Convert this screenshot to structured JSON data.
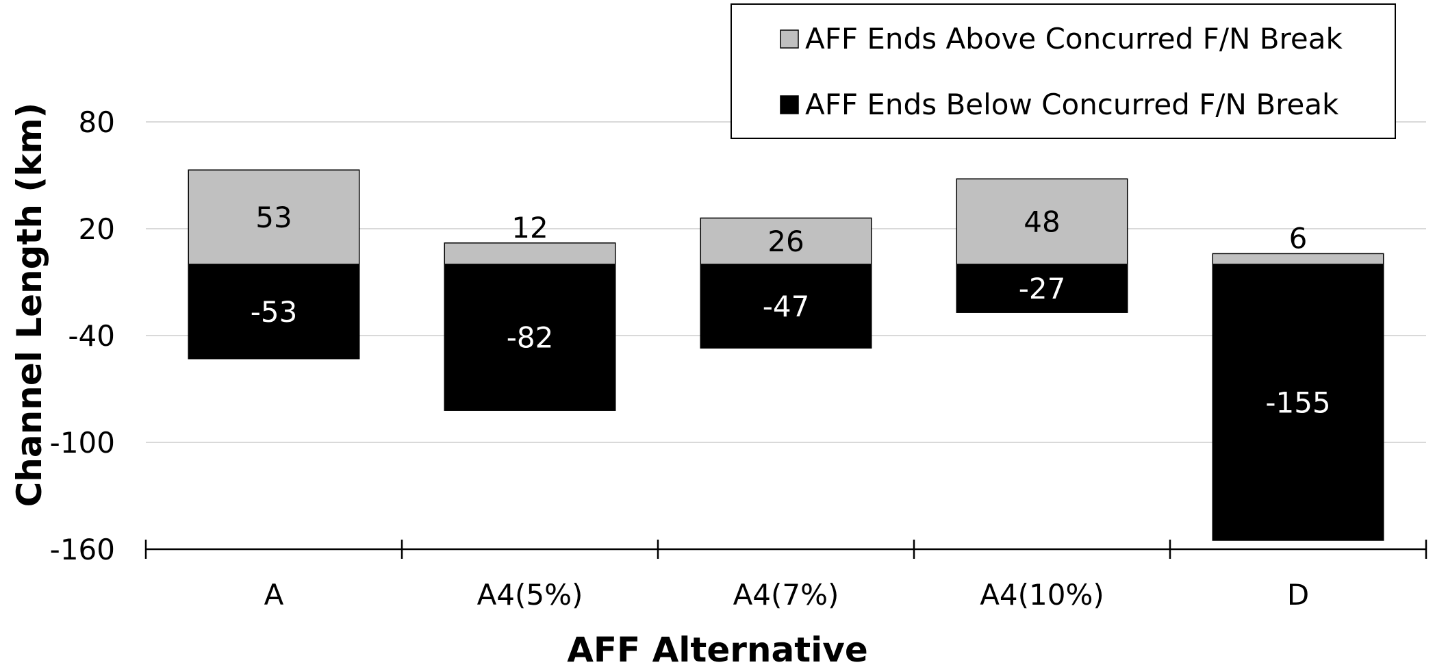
{
  "chart_data": {
    "type": "bar",
    "stacked": true,
    "title": "",
    "xlabel": "AFF Alternative",
    "ylabel": "Channel Length (km)",
    "categories": [
      "A",
      "A4(5%)",
      "A4(7%)",
      "A4(10%)",
      "D"
    ],
    "series": [
      {
        "name": "AFF Ends Above Concurred F/N Break",
        "color": "#c0c0c0",
        "label_color": "#000000",
        "values": [
          53,
          12,
          26,
          48,
          6
        ]
      },
      {
        "name": "AFF Ends Below Concurred F/N Break",
        "color": "#000000",
        "label_color": "#ffffff",
        "values": [
          -53,
          -82,
          -47,
          -27,
          -155
        ]
      }
    ],
    "ylim": [
      -160,
      80
    ],
    "yticks": [
      80,
      20,
      -40,
      -100,
      -160
    ],
    "grid": true,
    "gridline_color": "#d9d9d9",
    "legend_position": "top-right"
  }
}
